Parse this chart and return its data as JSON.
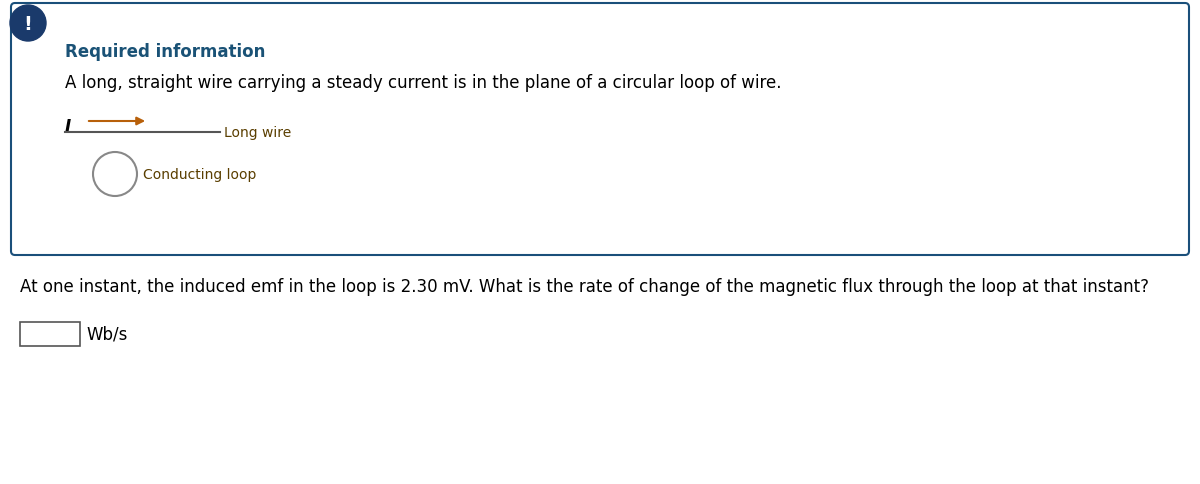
{
  "bg_color": "#ffffff",
  "box_border_color": "#1a4f7a",
  "box_bg_color": "#ffffff",
  "icon_bg_color": "#1a3a6b",
  "icon_text": "!",
  "icon_text_color": "#ffffff",
  "required_info_text": "Required information",
  "required_info_color": "#1a5276",
  "description_text": "A long, straight wire carrying a steady current is in the plane of a circular loop of wire.",
  "description_color": "#000000",
  "wire_label": "Long wire",
  "wire_label_color": "#5a3e00",
  "loop_label": "Conducting loop",
  "loop_label_color": "#5a3e00",
  "current_label": "I",
  "current_label_color": "#000000",
  "arrow_color": "#b8600a",
  "wire_color": "#555555",
  "loop_color": "#888888",
  "question_text": "At one instant, the induced emf in the loop is 2.30 mV. What is the rate of change of the magnetic flux through the loop at that instant?",
  "question_color": "#000000",
  "answer_unit": "Wb/s",
  "answer_unit_color": "#000000",
  "font_size_required": 12,
  "font_size_description": 12,
  "font_size_wire_labels": 10,
  "font_size_question": 12,
  "font_size_unit": 12,
  "font_size_current": 12,
  "font_size_icon": 14
}
